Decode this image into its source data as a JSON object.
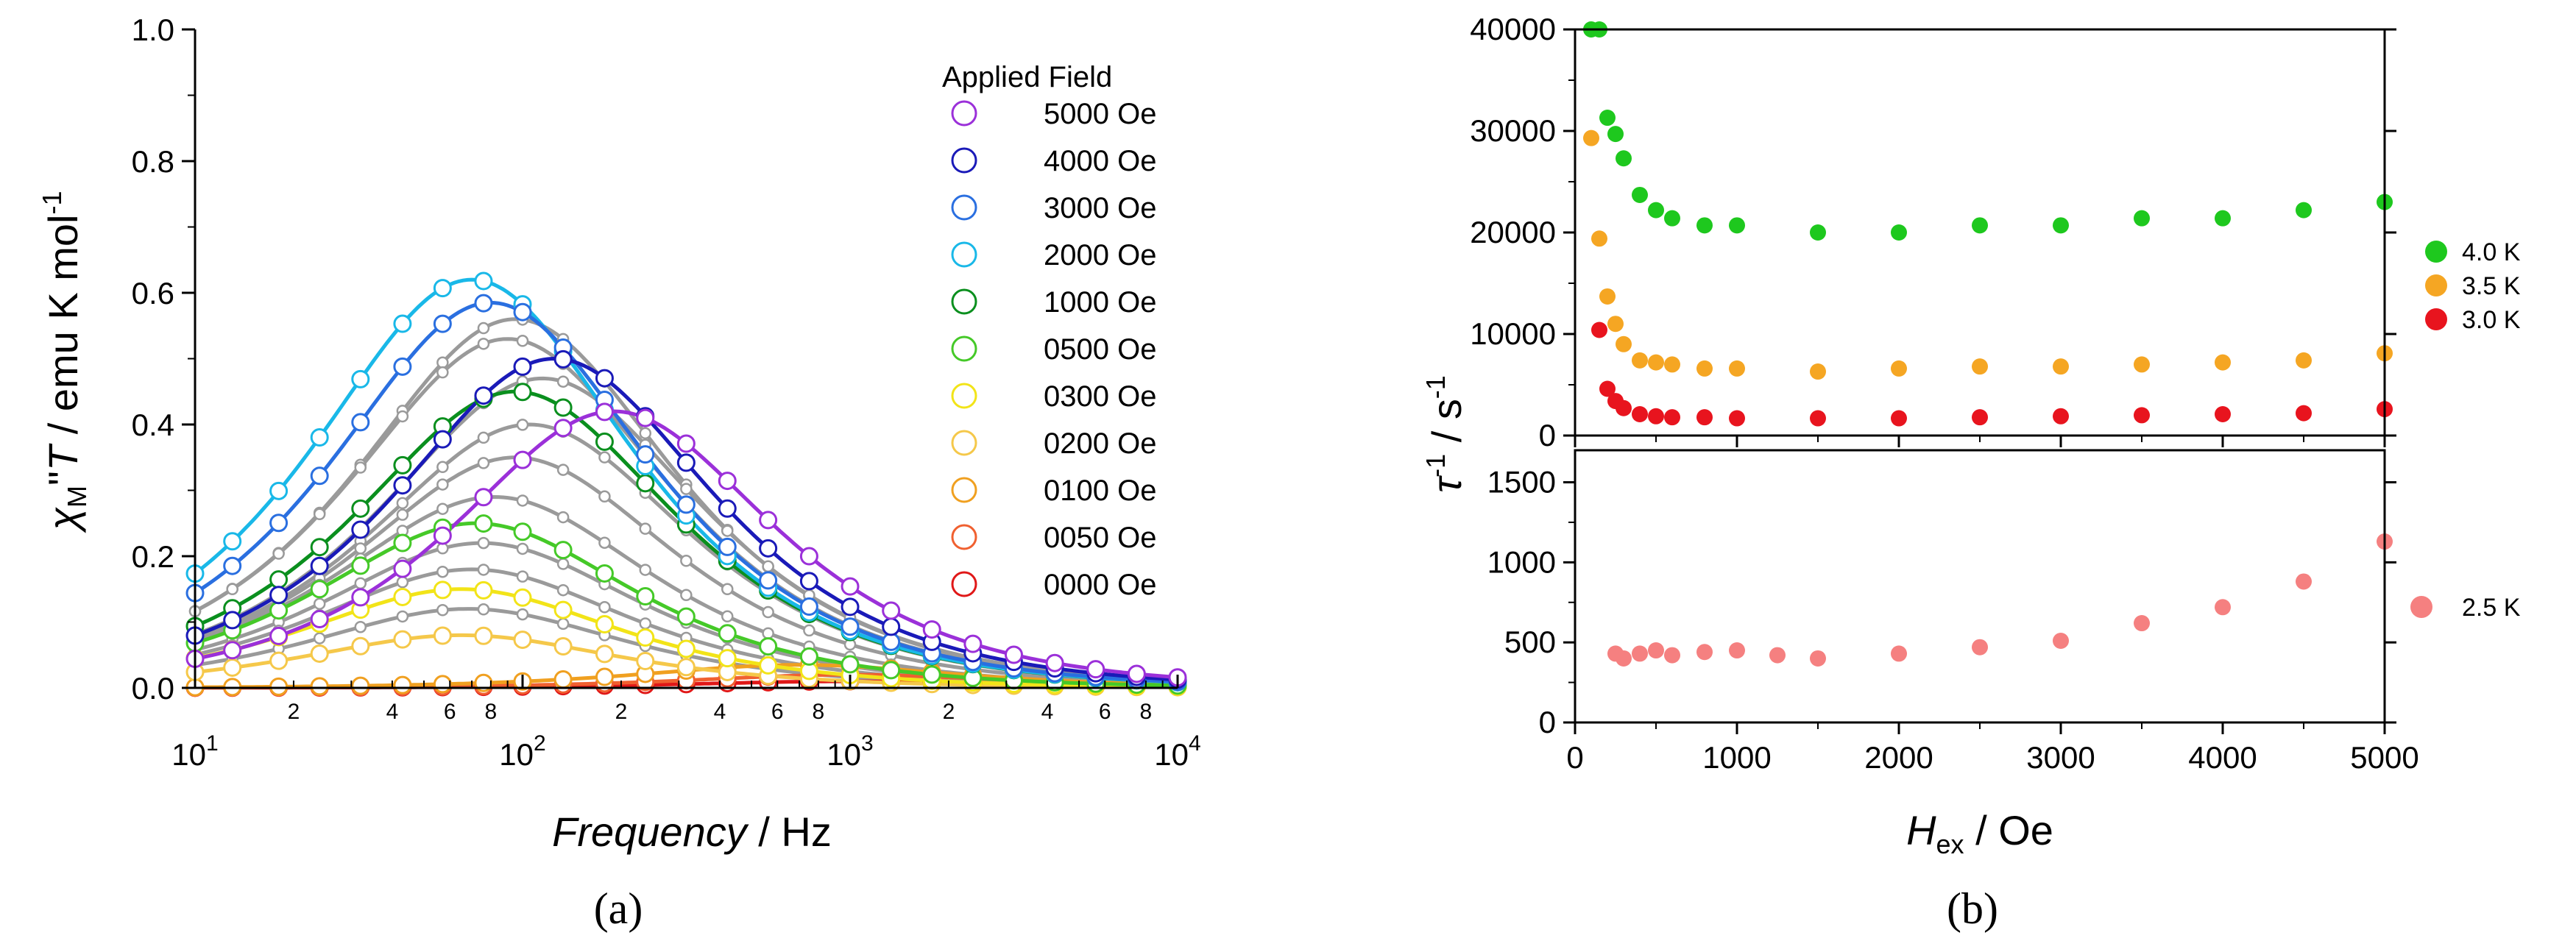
{
  "chart_data": [
    {
      "id": "a",
      "type": "scatter",
      "panel_label": "(a)",
      "xlabel_italic": "Frequency",
      "xlabel_suffix": " / Hz",
      "ylabel": "χM\"T / emu K mol-1",
      "xscale": "log",
      "xlim": [
        10,
        10000
      ],
      "ylim": [
        0,
        1.0
      ],
      "yticks": [
        0.0,
        0.2,
        0.4,
        0.6,
        0.8,
        1.0
      ],
      "ytick_labels": [
        "0.0",
        "0.2",
        "0.4",
        "0.6",
        "0.8",
        "1.0"
      ],
      "xticks": [
        10,
        100,
        1000,
        10000
      ],
      "xtick_labels": [
        {
          "base": "10",
          "exp": "1"
        },
        {
          "base": "10",
          "exp": "2"
        },
        {
          "base": "10",
          "exp": "3"
        },
        {
          "base": "10",
          "exp": "4"
        }
      ],
      "minor_tick_labels": [
        {
          "x": 20,
          "label": "2"
        },
        {
          "x": 40,
          "label": "4"
        },
        {
          "x": 60,
          "label": "6"
        },
        {
          "x": 80,
          "label": "8"
        },
        {
          "x": 200,
          "label": "2"
        },
        {
          "x": 400,
          "label": "4"
        },
        {
          "x": 600,
          "label": "6"
        },
        {
          "x": 800,
          "label": "8"
        },
        {
          "x": 2000,
          "label": "2"
        },
        {
          "x": 4000,
          "label": "4"
        },
        {
          "x": 6000,
          "label": "6"
        },
        {
          "x": 8000,
          "label": "8"
        }
      ],
      "frequencies": [
        10,
        13,
        18,
        24,
        32,
        43,
        57,
        76,
        100,
        133,
        178,
        237,
        316,
        422,
        562,
        750,
        1000,
        1334,
        1778,
        2371,
        3162,
        4217,
        5623,
        7499,
        10000
      ],
      "legend_title": "Applied Field",
      "legend_position": "top-right",
      "series": [
        {
          "name": "5000 Oe",
          "color": "#9b30d9",
          "peak": 0.42,
          "fpeak": 190
        },
        {
          "name": "4000 Oe",
          "color": "#1a1ab8",
          "peak": 0.5,
          "fpeak": 125
        },
        {
          "name": "3000 Oe",
          "color": "#2a6fe0",
          "peak": 0.585,
          "fpeak": 80
        },
        {
          "name": "2000 Oe",
          "color": "#19b8e8",
          "peak": 0.62,
          "fpeak": 70
        },
        {
          "name": "1000 Oe",
          "color": "#0a8f1e",
          "peak": 0.45,
          "fpeak": 95
        },
        {
          "name": "0500 Oe",
          "color": "#45c928",
          "peak": 0.25,
          "fpeak": 72
        },
        {
          "name": "0300 Oe",
          "color": "#f2e418",
          "peak": 0.15,
          "fpeak": 65
        },
        {
          "name": "0200 Oe",
          "color": "#f5c84a",
          "peak": 0.08,
          "fpeak": 65
        },
        {
          "name": "0100 Oe",
          "color": "#f0a020",
          "peak": 0.035,
          "fpeak": 700
        },
        {
          "name": "0050 Oe",
          "color": "#f06030",
          "peak": 0.02,
          "fpeak": 1000
        },
        {
          "name": "0000 Oe",
          "color": "#e01818",
          "peak": 0.01,
          "fpeak": 1000
        }
      ],
      "gray_series": [
        {
          "peak": 0.56,
          "fpeak": 95
        },
        {
          "peak": 0.53,
          "fpeak": 90
        },
        {
          "peak": 0.47,
          "fpeak": 115
        },
        {
          "peak": 0.4,
          "fpeak": 105
        },
        {
          "peak": 0.35,
          "fpeak": 95
        },
        {
          "peak": 0.29,
          "fpeak": 82
        },
        {
          "peak": 0.22,
          "fpeak": 75
        },
        {
          "peak": 0.18,
          "fpeak": 70
        },
        {
          "peak": 0.12,
          "fpeak": 68
        }
      ]
    },
    {
      "id": "b",
      "type": "scatter",
      "panel_label": "(b)",
      "xlabel_italic": "H",
      "xlabel_sub": "ex",
      "xlabel_suffix": " / Oe",
      "ylabel": "τ-1 / s-1",
      "xlim": [
        0,
        5000
      ],
      "xticks": [
        0,
        1000,
        2000,
        3000,
        4000,
        5000
      ],
      "xtick_labels": [
        "0",
        "1000",
        "2000",
        "3000",
        "4000",
        "5000"
      ],
      "upper": {
        "ylim": [
          0,
          40000
        ],
        "yticks": [
          0,
          10000,
          20000,
          30000,
          40000
        ],
        "ytick_labels": [
          "0",
          "10000",
          "20000",
          "30000",
          "40000"
        ],
        "series": [
          {
            "name": "4.0 K",
            "color": "#1ec81e",
            "x": [
              100,
              150,
              200,
              250,
              300,
              400,
              500,
              600,
              800,
              1000,
              1500,
              2000,
              2500,
              3000,
              3500,
              4000,
              4500,
              5000
            ],
            "y": [
              40000,
              40000,
              31300,
              29700,
              27300,
              23700,
              22200,
              21400,
              20700,
              20700,
              20000,
              20000,
              20700,
              20700,
              21400,
              21400,
              22200,
              23000
            ]
          },
          {
            "name": "3.5 K",
            "color": "#f5a623",
            "x": [
              100,
              150,
              200,
              250,
              300,
              400,
              500,
              600,
              800,
              1000,
              1500,
              2000,
              2500,
              3000,
              3500,
              4000,
              4500,
              5000
            ],
            "y": [
              29300,
              19400,
              13700,
              11000,
              9000,
              7400,
              7200,
              7000,
              6600,
              6600,
              6300,
              6600,
              6800,
              6800,
              7000,
              7200,
              7400,
              8100
            ]
          },
          {
            "name": "3.0 K",
            "color": "#e8141e",
            "x": [
              150,
              200,
              250,
              300,
              400,
              500,
              600,
              800,
              1000,
              1500,
              2000,
              2500,
              3000,
              3500,
              4000,
              4500,
              5000
            ],
            "y": [
              10400,
              4600,
              3400,
              2700,
              2100,
              1900,
              1800,
              1800,
              1700,
              1700,
              1700,
              1800,
              1900,
              2000,
              2100,
              2200,
              2600
            ]
          }
        ]
      },
      "lower": {
        "ylim": [
          0,
          1700
        ],
        "yticks": [
          0,
          500,
          1000,
          1500
        ],
        "ytick_labels": [
          "0",
          "500",
          "1000",
          "1500"
        ],
        "series": [
          {
            "name": "2.5 K",
            "color": "#f58080",
            "x": [
              250,
              300,
              400,
              500,
              600,
              800,
              1000,
              1250,
              1500,
              2000,
              2500,
              3000,
              3500,
              4000,
              4500,
              5000
            ],
            "y": [
              430,
              400,
              430,
              450,
              420,
              440,
              450,
              420,
              400,
              430,
              470,
              510,
              620,
              720,
              880,
              1130
            ]
          }
        ]
      }
    }
  ]
}
